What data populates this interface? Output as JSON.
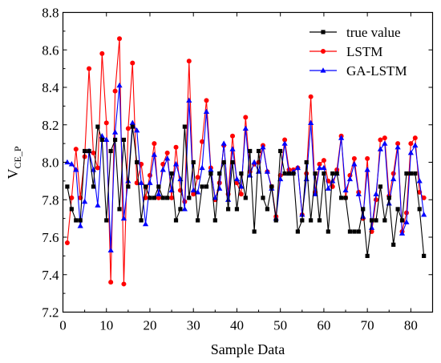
{
  "chart_data": {
    "type": "line",
    "title": "",
    "xlabel": "Sample Data",
    "ylabel": "V",
    "ylabel_sub": "CE_P",
    "xlim": [
      0,
      85
    ],
    "ylim": [
      7.2,
      8.8
    ],
    "xticks": [
      "0",
      "10",
      "20",
      "30",
      "40",
      "50",
      "60",
      "70",
      "80"
    ],
    "yticks": [
      "7.2",
      "7.4",
      "7.6",
      "7.8",
      "8.0",
      "8.2",
      "8.4",
      "8.6",
      "8.8"
    ],
    "grid": false,
    "legend": "top-right",
    "x": [
      1,
      2,
      3,
      4,
      5,
      6,
      7,
      8,
      9,
      10,
      11,
      12,
      13,
      14,
      15,
      16,
      17,
      18,
      19,
      20,
      21,
      22,
      23,
      24,
      25,
      26,
      27,
      28,
      29,
      30,
      31,
      32,
      33,
      34,
      35,
      36,
      37,
      38,
      39,
      40,
      41,
      42,
      43,
      44,
      45,
      46,
      47,
      48,
      49,
      50,
      51,
      52,
      53,
      54,
      55,
      56,
      57,
      58,
      59,
      60,
      61,
      62,
      63,
      64,
      65,
      66,
      67,
      68,
      69,
      70,
      71,
      72,
      73,
      74,
      75,
      76,
      77,
      78,
      79,
      80,
      81,
      82,
      83
    ],
    "series": [
      {
        "name": "true value",
        "color": "#000000",
        "marker": "square",
        "values": [
          7.87,
          7.75,
          7.69,
          7.69,
          8.06,
          8.06,
          7.87,
          8.19,
          8.12,
          7.69,
          8.06,
          8.12,
          7.75,
          8.12,
          7.87,
          8.19,
          8.0,
          7.69,
          7.87,
          7.81,
          7.81,
          7.87,
          7.81,
          7.81,
          7.94,
          7.69,
          7.75,
          8.19,
          7.81,
          8.0,
          7.69,
          7.87,
          7.87,
          7.94,
          7.69,
          7.94,
          8.0,
          7.75,
          8.0,
          7.75,
          7.94,
          7.81,
          8.06,
          7.63,
          8.06,
          7.81,
          7.75,
          7.87,
          7.69,
          8.06,
          7.94,
          7.94,
          7.94,
          7.63,
          7.69,
          8.0,
          7.69,
          7.94,
          7.69,
          7.94,
          7.63,
          7.94,
          7.94,
          7.81,
          7.81,
          7.63,
          7.63,
          7.63,
          7.75,
          7.5,
          7.69,
          7.69,
          7.87,
          7.69,
          7.81,
          7.56,
          7.75,
          7.69,
          7.94,
          7.94,
          7.94,
          7.75,
          7.5
        ]
      },
      {
        "name": "LSTM",
        "color": "#ff0000",
        "marker": "circle",
        "values": [
          7.57,
          7.81,
          8.07,
          7.81,
          8.03,
          8.5,
          8.05,
          7.97,
          8.58,
          8.21,
          7.36,
          8.38,
          8.66,
          7.35,
          8.18,
          8.53,
          7.89,
          7.99,
          7.81,
          7.93,
          8.1,
          7.81,
          7.99,
          8.05,
          7.81,
          8.08,
          7.85,
          7.79,
          8.54,
          7.83,
          7.92,
          8.11,
          8.33,
          7.97,
          7.8,
          7.89,
          8.09,
          7.83,
          8.14,
          7.89,
          7.83,
          8.24,
          7.95,
          7.99,
          8.0,
          8.09,
          7.95,
          7.87,
          7.71,
          7.93,
          8.12,
          7.96,
          7.96,
          7.97,
          7.72,
          7.94,
          8.35,
          7.84,
          7.99,
          8.01,
          7.9,
          7.87,
          7.96,
          8.14,
          7.81,
          7.93,
          8.02,
          7.84,
          7.7,
          8.02,
          7.63,
          7.8,
          8.12,
          8.13,
          7.82,
          7.94,
          8.1,
          7.63,
          7.73,
          8.1,
          8.13,
          7.84,
          7.81
        ]
      },
      {
        "name": "GA-LSTM",
        "color": "#0000ff",
        "marker": "triangle",
        "values": [
          8.0,
          7.99,
          7.96,
          7.66,
          7.79,
          8.06,
          7.96,
          7.77,
          8.14,
          8.12,
          7.53,
          8.16,
          8.41,
          7.7,
          7.9,
          8.21,
          8.17,
          7.89,
          7.67,
          7.89,
          8.04,
          7.83,
          7.96,
          8.02,
          7.85,
          7.99,
          7.91,
          7.75,
          8.33,
          7.85,
          7.84,
          7.97,
          8.27,
          7.96,
          7.81,
          7.86,
          8.1,
          7.8,
          8.07,
          7.91,
          7.87,
          8.18,
          7.93,
          8.0,
          7.95,
          8.08,
          7.95,
          7.86,
          7.7,
          7.91,
          8.1,
          7.94,
          7.95,
          7.97,
          7.72,
          7.91,
          8.21,
          7.83,
          7.97,
          7.97,
          7.86,
          7.9,
          7.94,
          8.13,
          7.85,
          7.91,
          7.99,
          7.83,
          7.71,
          7.96,
          7.65,
          7.83,
          8.07,
          8.1,
          7.78,
          7.91,
          8.08,
          7.62,
          7.68,
          8.05,
          8.09,
          7.9,
          7.72
        ]
      }
    ]
  }
}
